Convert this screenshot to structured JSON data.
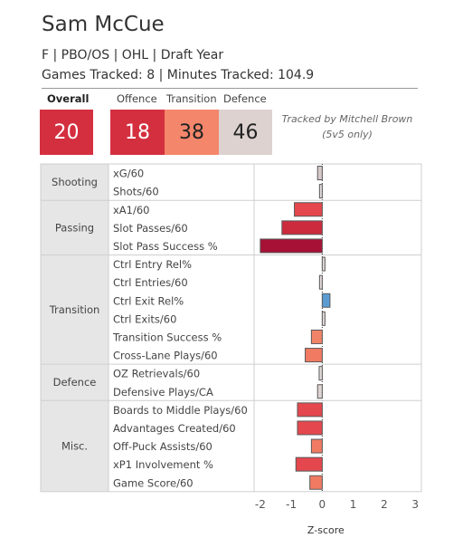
{
  "player": {
    "name": "Sam McCue",
    "info": "F | PBO/OS | OHL | Draft Year",
    "tracked": "Games Tracked: 8 | Minutes Tracked: 104.9"
  },
  "summary": {
    "overall": {
      "label": "Overall",
      "value": "20",
      "color": "#d42f3f",
      "text_color": "#ffffff"
    },
    "offence": {
      "label": "Offence",
      "value": "18",
      "color": "#d42f3f",
      "text_color": "#ffffff"
    },
    "transition": {
      "label": "Transition",
      "value": "38",
      "color": "#f4866b",
      "text_color": "#222222"
    },
    "defence": {
      "label": "Defence",
      "value": "46",
      "color": "#ddd2d0",
      "text_color": "#222222"
    }
  },
  "note": [
    "Tracked by Mitchell Brown",
    "(5v5 only)"
  ],
  "chart_data": {
    "type": "bar",
    "orientation": "horizontal",
    "xlabel": "Z-score",
    "ylabel": "",
    "xlim": [
      -2.2,
      3.2
    ],
    "xticks": [
      -2,
      -1,
      0,
      1,
      2,
      3
    ],
    "grid": false,
    "groups": [
      {
        "name": "Shooting",
        "metrics": [
          {
            "label": "xG/60",
            "value": -0.15,
            "color": "#d8c9c9"
          },
          {
            "label": "Shots/60",
            "value": -0.05,
            "color": "#e3dada"
          }
        ]
      },
      {
        "name": "Passing",
        "metrics": [
          {
            "label": "xA1/60",
            "value": -0.9,
            "color": "#e4474d"
          },
          {
            "label": "Slot Passes/60",
            "value": -1.3,
            "color": "#cc2a3d"
          },
          {
            "label": "Slot Pass Success %",
            "value": -2.0,
            "color": "#a61135"
          }
        ]
      },
      {
        "name": "Transition",
        "metrics": [
          {
            "label": "Ctrl Entry Rel%",
            "value": 0.04,
            "color": "#e3dada"
          },
          {
            "label": "Ctrl Entries/60",
            "value": -0.05,
            "color": "#e3dada"
          },
          {
            "label": "Ctrl Exit Rel%",
            "value": 0.25,
            "color": "#5b9bd1"
          },
          {
            "label": "Ctrl Exits/60",
            "value": 0.08,
            "color": "#e3dada"
          },
          {
            "label": "Transition Success %",
            "value": -0.35,
            "color": "#f18468"
          },
          {
            "label": "Cross-Lane Plays/60",
            "value": -0.55,
            "color": "#f07a62"
          }
        ]
      },
      {
        "name": "Defence",
        "metrics": [
          {
            "label": "OZ Retrievals/60",
            "value": -0.1,
            "color": "#e3dada"
          },
          {
            "label": "Defensive Plays/CA",
            "value": -0.15,
            "color": "#dfd4d4"
          }
        ]
      },
      {
        "name": "Misc.",
        "metrics": [
          {
            "label": "Boards to Middle Plays/60",
            "value": -0.8,
            "color": "#e4474d"
          },
          {
            "label": "Advantages Created/60",
            "value": -0.8,
            "color": "#e4474d"
          },
          {
            "label": "Off-Puck Assists/60",
            "value": -0.35,
            "color": "#f07a62"
          },
          {
            "label": "xP1 Involvement %",
            "value": -0.85,
            "color": "#e4474d"
          },
          {
            "label": "Game Score/60",
            "value": -0.4,
            "color": "#f07a62"
          }
        ]
      }
    ]
  }
}
